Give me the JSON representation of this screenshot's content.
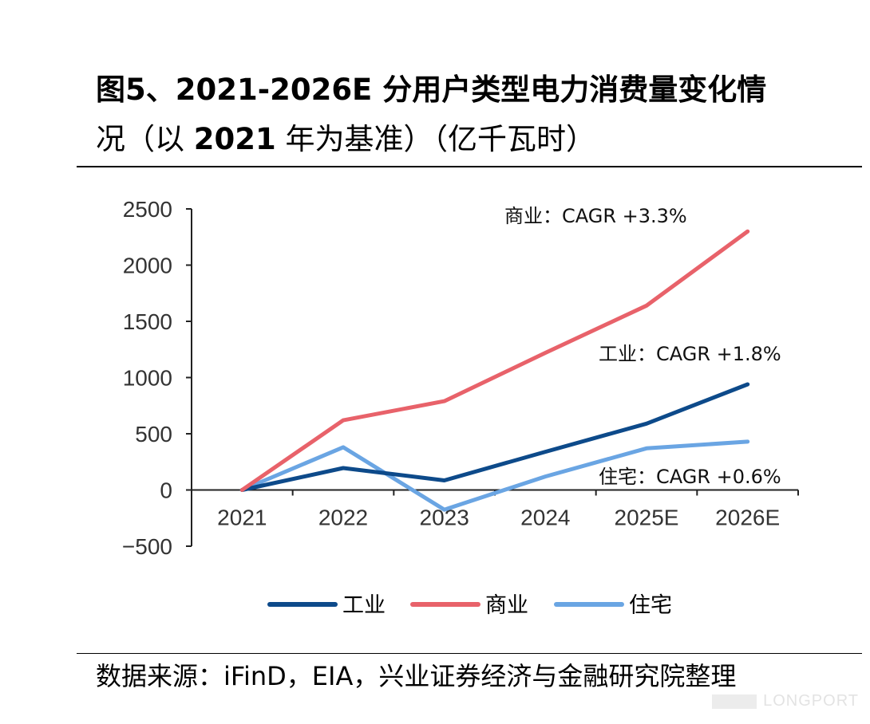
{
  "title": {
    "line1": "图5、2021-2026E 分用户类型电力消费量变化情",
    "line2_pre": "况（以 ",
    "line2_year": "2021",
    "line2_post": " 年为基准）（亿千瓦时）"
  },
  "source": "数据来源：iFinD，EIA，兴业证券经济与金融研究院整理",
  "watermark": "LONGPORT",
  "chart_data": {
    "type": "line",
    "categories": [
      "2021",
      "2022",
      "2023",
      "2024",
      "2025E",
      "2026E"
    ],
    "ylim": [
      -500,
      2500
    ],
    "yticks": [
      -500,
      0,
      500,
      1000,
      1500,
      2000,
      2500
    ],
    "ytick_labels": [
      "−500",
      "0",
      "500",
      "1000",
      "1500",
      "2000",
      "2500"
    ],
    "series": [
      {
        "name": "工业",
        "color": "#0d4a8a",
        "values": [
          0,
          195,
          85,
          340,
          590,
          940
        ]
      },
      {
        "name": "商业",
        "color": "#e8626a",
        "values": [
          0,
          620,
          790,
          1220,
          1640,
          2300
        ]
      },
      {
        "name": "住宅",
        "color": "#6aa5e3",
        "values": [
          0,
          380,
          -175,
          120,
          370,
          430
        ]
      }
    ],
    "annotations": [
      {
        "text": "商业：CAGR +3.3%",
        "series": "商业"
      },
      {
        "text": "工业：CAGR +1.8%",
        "series": "工业"
      },
      {
        "text": "住宅：CAGR +0.6%",
        "series": "住宅"
      }
    ],
    "legend_position": "bottom",
    "grid": false
  }
}
